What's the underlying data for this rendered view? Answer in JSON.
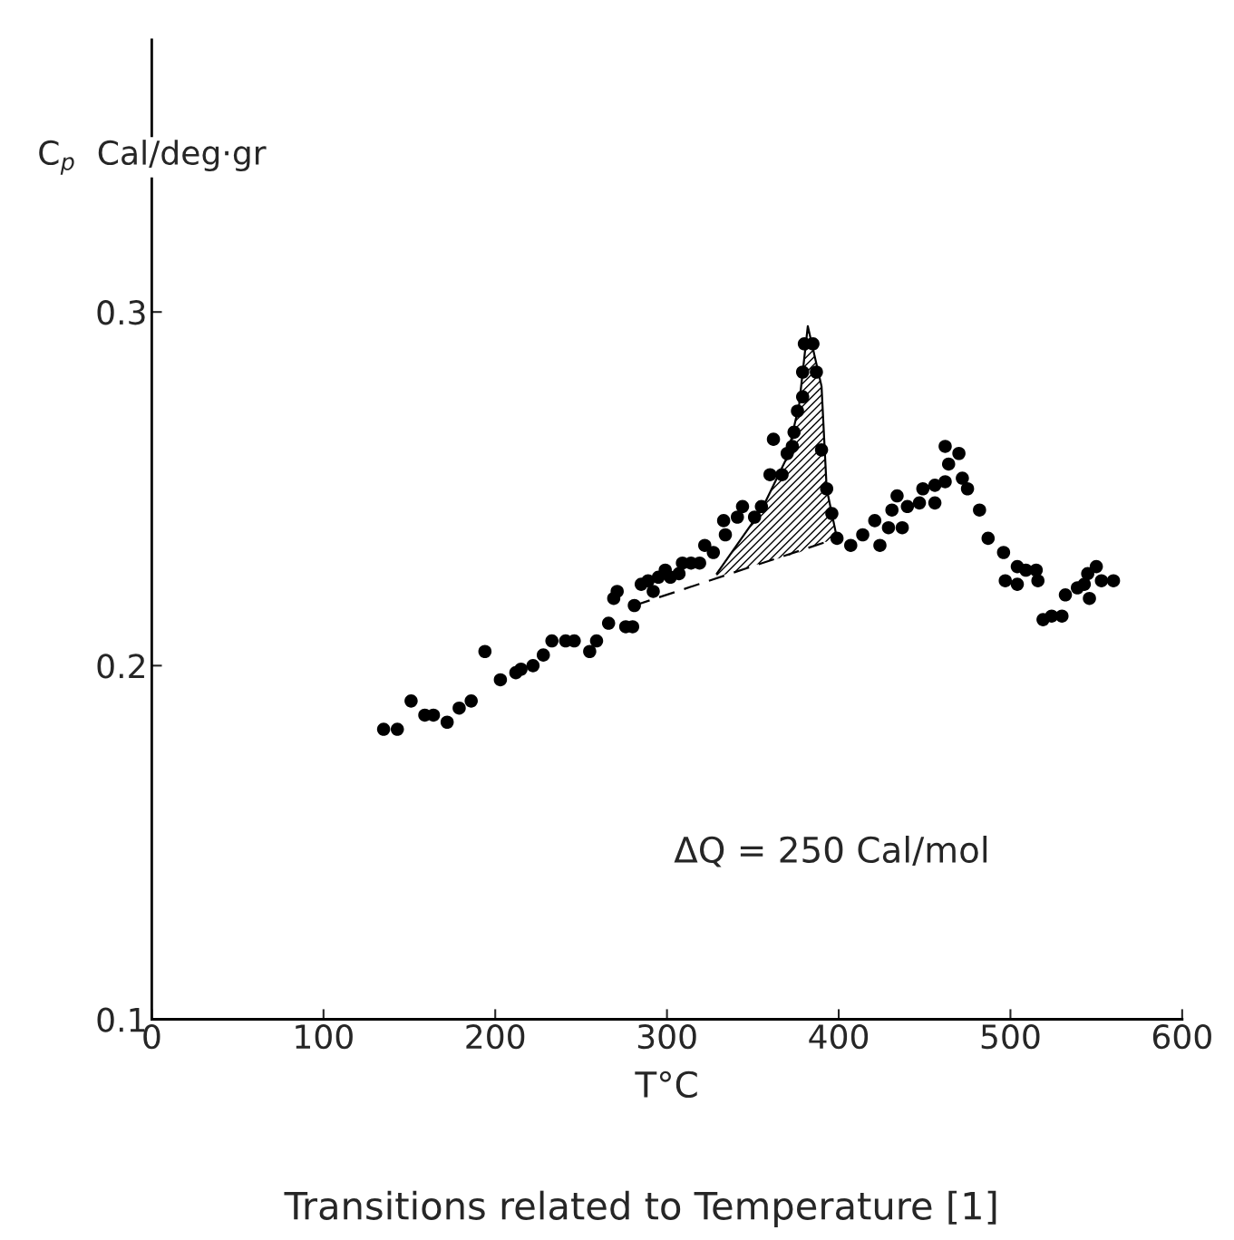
{
  "chart_data": {
    "type": "scatter",
    "xlabel": "T°C",
    "ylabel": "C$_{p}$  Cal/deg·gr",
    "xlim": [
      0,
      600
    ],
    "ylim": [
      0.1,
      0.377
    ],
    "xticks": [
      0,
      100,
      200,
      300,
      400,
      500,
      600
    ],
    "yticks": [
      0.1,
      0.2,
      0.3
    ],
    "grid": false,
    "legend": false,
    "annotations": [
      "ΔQ = 250 Cal/mol",
      "Transitions related to Temperature [1]"
    ],
    "series": [
      {
        "color": "#000000",
        "marker": "circle",
        "x": [
          135,
          143,
          151,
          159,
          164,
          172,
          179,
          186,
          194,
          203,
          212,
          215,
          222,
          228,
          233,
          241,
          246,
          255,
          259,
          266,
          269,
          271,
          276,
          280,
          281,
          285,
          289,
          292,
          295,
          299,
          302,
          307,
          309,
          314,
          319,
          322,
          327,
          333,
          334,
          341,
          344,
          351,
          355,
          360,
          362,
          367,
          370,
          373,
          374,
          376,
          379,
          379,
          380,
          385,
          387,
          390,
          393,
          396,
          399,
          407,
          414,
          421,
          424,
          429,
          431,
          434,
          437,
          440,
          447,
          449,
          456,
          456,
          462,
          462,
          464,
          470,
          472,
          475,
          482,
          487,
          496,
          497,
          504,
          504,
          509,
          515,
          516,
          519,
          524,
          530,
          532,
          539,
          543,
          545,
          550,
          546,
          553,
          560
        ],
        "values": [
          0.182,
          0.182,
          0.19,
          0.186,
          0.186,
          0.184,
          0.188,
          0.19,
          0.204,
          0.196,
          0.198,
          0.199,
          0.2,
          0.203,
          0.207,
          0.207,
          0.207,
          0.204,
          0.207,
          0.212,
          0.219,
          0.221,
          0.211,
          0.211,
          0.217,
          0.223,
          0.224,
          0.221,
          0.225,
          0.227,
          0.225,
          0.226,
          0.229,
          0.229,
          0.229,
          0.234,
          0.232,
          0.241,
          0.237,
          0.242,
          0.245,
          0.242,
          0.245,
          0.254,
          0.264,
          0.254,
          0.26,
          0.262,
          0.266,
          0.272,
          0.276,
          0.283,
          0.291,
          0.291,
          0.283,
          0.261,
          0.25,
          0.243,
          0.236,
          0.234,
          0.237,
          0.241,
          0.234,
          0.239,
          0.244,
          0.248,
          0.239,
          0.245,
          0.246,
          0.25,
          0.246,
          0.251,
          0.252,
          0.262,
          0.257,
          0.26,
          0.253,
          0.25,
          0.244,
          0.236,
          0.232,
          0.224,
          0.223,
          0.228,
          0.227,
          0.227,
          0.224,
          0.213,
          0.214,
          0.214,
          0.22,
          0.222,
          0.223,
          0.226,
          0.228,
          0.219,
          0.224,
          0.224
        ]
      },
      {
        "type": "line",
        "color": "#000000",
        "line_style": "solid",
        "x": [
          329,
          355,
          370,
          377,
          382,
          390,
          393,
          399
        ],
        "values": [
          0.226,
          0.244,
          0.259,
          0.274,
          0.296,
          0.279,
          0.25,
          0.236
        ],
        "lower": [
          0.225,
          0.229,
          0.231,
          0.232,
          0.233,
          0.235,
          0.235,
          0.236
        ],
        "upper": [
          0.226,
          0.244,
          0.259,
          0.274,
          0.296,
          0.279,
          0.25,
          0.236
        ]
      },
      {
        "type": "line",
        "color": "#000000",
        "line_style": "dashed",
        "x": [
          281,
          399
        ],
        "values": [
          0.217,
          0.236
        ]
      }
    ]
  }
}
